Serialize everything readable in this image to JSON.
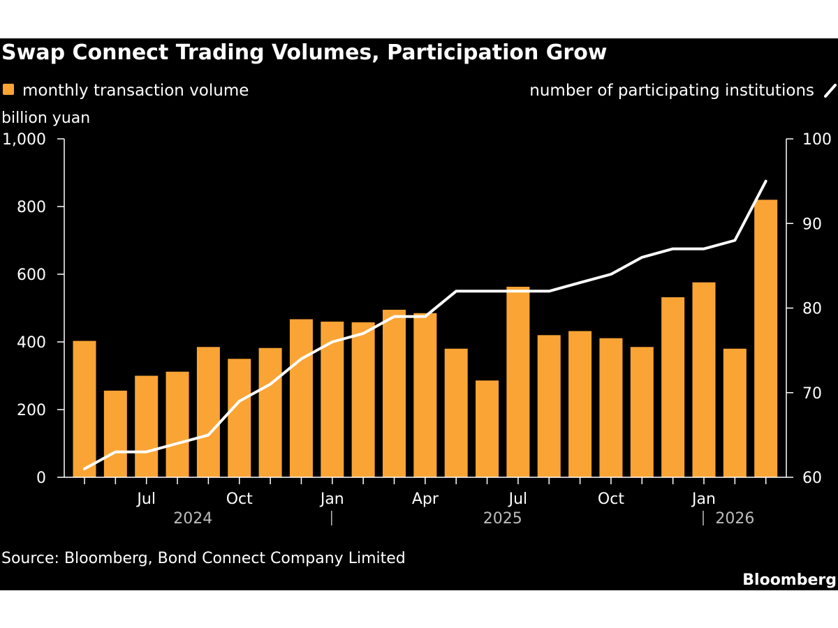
{
  "title": "Swap Connect Trading Volumes, Participation Grow",
  "legend": {
    "bars_label": "monthly transaction volume",
    "line_label": "number of participating institutions"
  },
  "left_axis_unit": "billion yuan",
  "source": "Source: Bloomberg, Bond Connect Company Limited",
  "brand": "Bloomberg",
  "colors": {
    "background": "#000000",
    "bar": "#f9a434",
    "line": "#ffffff",
    "text": "#ffffff",
    "muted": "#bdbdbd"
  },
  "chart_data": {
    "type": "bar",
    "categories": [
      "2024-05",
      "2024-06",
      "2024-07",
      "2024-08",
      "2024-09",
      "2024-10",
      "2024-11",
      "2024-12",
      "2025-01",
      "2025-02",
      "2025-03",
      "2025-04",
      "2025-05",
      "2025-06",
      "2025-07",
      "2025-08",
      "2025-09",
      "2025-10",
      "2025-11",
      "2025-12",
      "2026-01",
      "2026-02",
      "2026-03"
    ],
    "series": [
      {
        "name": "monthly transaction volume",
        "axis": "left",
        "kind": "bar",
        "values": [
          403,
          256,
          300,
          312,
          385,
          350,
          382,
          467,
          460,
          458,
          495,
          485,
          380,
          286,
          563,
          420,
          432,
          411,
          385,
          532,
          576,
          380,
          820
        ]
      },
      {
        "name": "number of participating institutions",
        "axis": "right",
        "kind": "line",
        "values": [
          61,
          63,
          63,
          64,
          65,
          69,
          71,
          74,
          76,
          77,
          79,
          79,
          82,
          82,
          82,
          82,
          83,
          84,
          86,
          87,
          87,
          88,
          95
        ]
      }
    ],
    "x_tick_labels": [
      {
        "index": 2,
        "label": "Jul"
      },
      {
        "index": 5,
        "label": "Oct"
      },
      {
        "index": 8,
        "label": "Jan"
      },
      {
        "index": 11,
        "label": "Apr"
      },
      {
        "index": 14,
        "label": "Jul"
      },
      {
        "index": 17,
        "label": "Oct"
      },
      {
        "index": 20,
        "label": "Jan"
      }
    ],
    "year_labels": [
      {
        "label": "2024",
        "from": 0,
        "to": 7
      },
      {
        "label": "2025",
        "from": 8,
        "to": 19
      },
      {
        "label": "2026",
        "from": 20,
        "to": 22
      }
    ],
    "ylim_left": [
      0,
      1000
    ],
    "ylim_right": [
      60,
      100
    ],
    "yticks_left": [
      "0",
      "200",
      "400",
      "600",
      "800",
      "1,000"
    ],
    "yticks_right": [
      "60",
      "70",
      "80",
      "90",
      "100"
    ],
    "grid": false,
    "legend_position": "top"
  }
}
